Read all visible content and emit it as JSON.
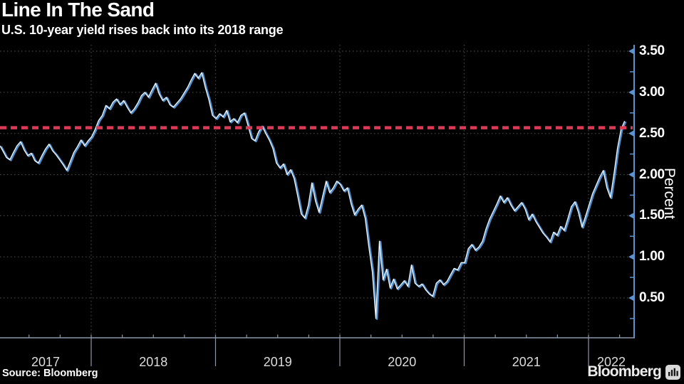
{
  "header": {
    "title": "Line In The Sand",
    "subtitle": "U.S. 10-year yield rises back into its 2018 range"
  },
  "footer": {
    "source": "Source: Bloomberg",
    "brand": "Bloomberg",
    "brand_icon": "bloomberg-chart-icon"
  },
  "colors": {
    "background": "#000000",
    "line_white": "#f4f8fd",
    "line_blue": "#4e8fce",
    "red_line": "#da3a55",
    "grid": "#474747",
    "y_axis": "#5c93cf",
    "x_axis": "#8a97a8",
    "tick_text": "#ffffff",
    "year_text": "#dcdcdc"
  },
  "chart_data": {
    "type": "line",
    "title": "Line In The Sand",
    "subtitle": "U.S. 10-year yield rises back into its 2018 range",
    "ylabel": "Percent",
    "xlabel": "",
    "grid": "dotted",
    "legend_position": "none",
    "ylim": [
      0.0,
      3.58
    ],
    "y_ticks": [
      3.5,
      3.0,
      2.5,
      2.0,
      1.5,
      1.0,
      0.5
    ],
    "y_tick_labels": [
      "3.50",
      "3.00",
      "2.50",
      "2.00",
      "1.50",
      "1.00",
      "0.50"
    ],
    "y_minor_ticks": [
      0.25,
      0.75,
      1.25,
      1.75,
      2.25,
      2.75,
      3.25
    ],
    "x_tick_labels": [
      "2017",
      "2018",
      "2019",
      "2020",
      "2021",
      "2022"
    ],
    "x_year_boundaries": [
      2018,
      2019,
      2020,
      2021,
      2022
    ],
    "x_range": [
      2017.26,
      2022.29
    ],
    "reference_line": {
      "value": 2.57,
      "style": "dashed",
      "color": "#da3a55"
    },
    "series": [
      {
        "name": "US 10-year Treasury yield",
        "unit": "percent",
        "values": [
          2.35,
          2.29,
          2.21,
          2.18,
          2.27,
          2.35,
          2.4,
          2.3,
          2.23,
          2.26,
          2.17,
          2.14,
          2.23,
          2.31,
          2.37,
          2.29,
          2.24,
          2.18,
          2.12,
          2.05,
          2.16,
          2.27,
          2.34,
          2.42,
          2.35,
          2.41,
          2.46,
          2.55,
          2.66,
          2.72,
          2.84,
          2.8,
          2.88,
          2.92,
          2.85,
          2.9,
          2.82,
          2.75,
          2.8,
          2.87,
          2.96,
          3.0,
          2.94,
          3.03,
          3.11,
          2.98,
          2.9,
          2.94,
          2.85,
          2.82,
          2.87,
          2.92,
          2.99,
          3.06,
          3.15,
          3.23,
          3.17,
          3.24,
          3.06,
          2.91,
          2.72,
          2.68,
          2.74,
          2.7,
          2.78,
          2.64,
          2.68,
          2.63,
          2.72,
          2.75,
          2.6,
          2.44,
          2.41,
          2.52,
          2.59,
          2.5,
          2.42,
          2.32,
          2.14,
          2.08,
          2.13,
          2.0,
          2.06,
          1.95,
          1.74,
          1.52,
          1.47,
          1.63,
          1.9,
          1.68,
          1.54,
          1.73,
          1.92,
          1.78,
          1.84,
          1.92,
          1.88,
          1.8,
          1.84,
          1.65,
          1.51,
          1.58,
          1.63,
          1.47,
          1.13,
          0.82,
          0.25,
          1.19,
          0.72,
          0.85,
          0.62,
          0.73,
          0.61,
          0.66,
          0.71,
          0.64,
          0.9,
          0.68,
          0.64,
          0.67,
          0.6,
          0.55,
          0.52,
          0.68,
          0.72,
          0.66,
          0.7,
          0.78,
          0.86,
          0.84,
          0.93,
          0.93,
          1.1,
          1.15,
          1.08,
          1.12,
          1.19,
          1.34,
          1.46,
          1.55,
          1.64,
          1.74,
          1.66,
          1.72,
          1.63,
          1.56,
          1.61,
          1.66,
          1.58,
          1.45,
          1.52,
          1.43,
          1.36,
          1.29,
          1.24,
          1.18,
          1.3,
          1.26,
          1.37,
          1.32,
          1.46,
          1.61,
          1.67,
          1.54,
          1.36,
          1.49,
          1.63,
          1.77,
          1.87,
          1.97,
          2.05,
          1.84,
          1.72,
          2.0,
          2.32,
          2.55,
          2.65
        ]
      }
    ]
  }
}
